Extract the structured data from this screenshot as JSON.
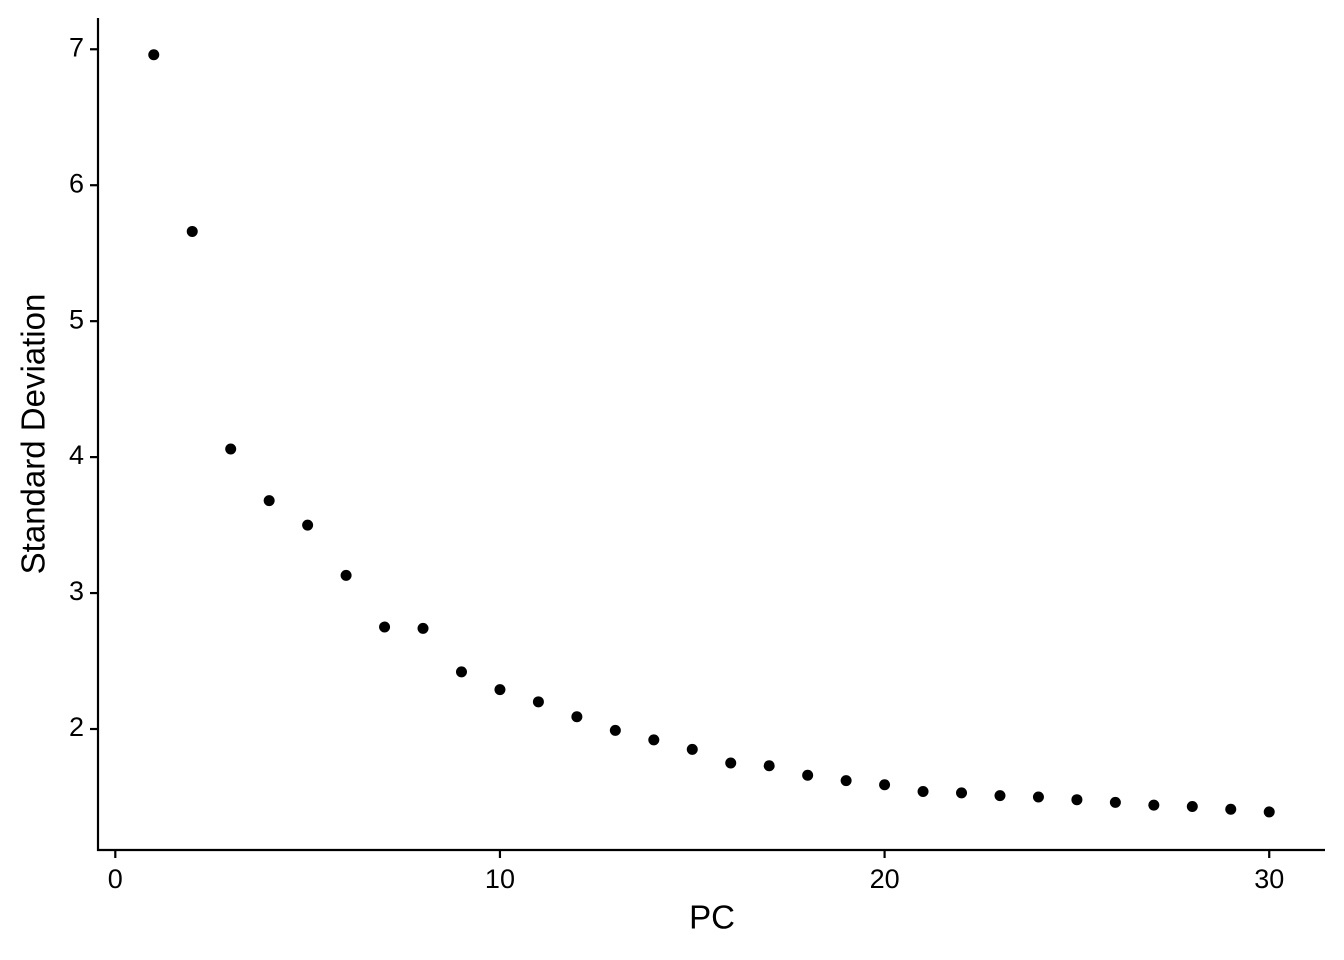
{
  "chart_data": {
    "type": "scatter",
    "x_label": "PC",
    "y_label": "Standard Deviation",
    "x": [
      1,
      2,
      3,
      4,
      5,
      6,
      7,
      8,
      9,
      10,
      11,
      12,
      13,
      14,
      15,
      16,
      17,
      18,
      19,
      20,
      21,
      22,
      23,
      24,
      25,
      26,
      27,
      28,
      29,
      30
    ],
    "values": [
      6.96,
      5.66,
      4.06,
      3.68,
      3.5,
      3.13,
      2.75,
      2.74,
      2.42,
      2.29,
      2.2,
      2.09,
      1.99,
      1.92,
      1.85,
      1.75,
      1.73,
      1.66,
      1.62,
      1.59,
      1.54,
      1.53,
      1.51,
      1.5,
      1.48,
      1.46,
      1.44,
      1.43,
      1.41,
      1.39
    ],
    "color": "#000000",
    "xlim": [
      -0.45,
      31.45
    ],
    "xticks": [
      0,
      10,
      20,
      30
    ],
    "ylim": [
      1.11,
      7.23
    ],
    "yticks": [
      2,
      3,
      4,
      5,
      6,
      7
    ],
    "grid": false
  }
}
